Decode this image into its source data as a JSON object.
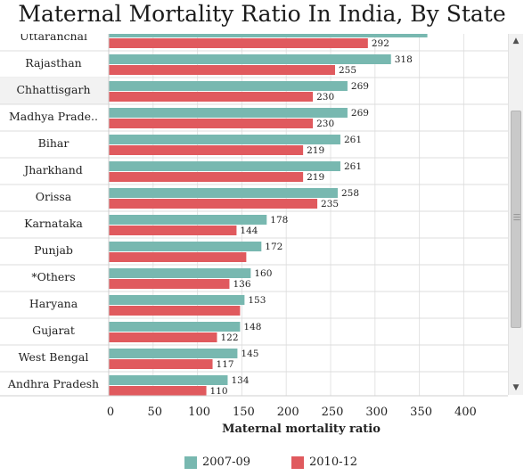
{
  "chart_data": {
    "type": "bar",
    "orientation": "horizontal",
    "title": "Maternal Mortality Ratio In India, By State",
    "xlabel": "Maternal mortality ratio",
    "ylabel": "",
    "xlim": [
      0,
      430
    ],
    "xticks": [
      "0",
      "50",
      "100",
      "150",
      "200",
      "250",
      "300",
      "350",
      "400"
    ],
    "grid": true,
    "legend_position": "bottom",
    "categories": [
      "Uttaranchal",
      "Rajasthan",
      "Chhattisgarh",
      "Madhya Prade..",
      "Bihar",
      "Jharkhand",
      "Orissa",
      "Karnataka",
      "Punjab",
      "*Others",
      "Haryana",
      "Gujarat",
      "West Bengal",
      "Andhra Pradesh"
    ],
    "series": [
      {
        "name": "2007-09",
        "color": "#78b8b0",
        "values": [
          359,
          318,
          269,
          269,
          261,
          261,
          258,
          178,
          172,
          160,
          153,
          148,
          145,
          134
        ],
        "labels": [
          "",
          "318",
          "269",
          "269",
          "261",
          "261",
          "258",
          "178",
          "172",
          "160",
          "153",
          "148",
          "145",
          "134"
        ]
      },
      {
        "name": "2010-12",
        "color": "#e05a5e",
        "values": [
          292,
          255,
          230,
          230,
          219,
          219,
          235,
          144,
          155,
          136,
          148,
          122,
          117,
          110
        ],
        "labels": [
          "292",
          "255",
          "230",
          "230",
          "219",
          "219",
          "235",
          "144",
          "",
          "136",
          "",
          "122",
          "117",
          "110"
        ]
      }
    ],
    "highlighted_category": "Chhattisgarh"
  },
  "scrollbar": {
    "up_icon": "triangle-up-icon",
    "down_icon": "triangle-down-icon"
  }
}
